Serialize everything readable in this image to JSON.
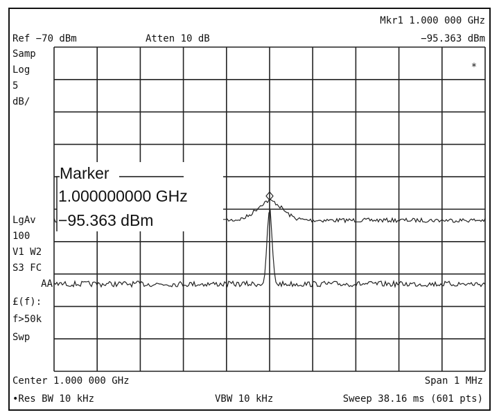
{
  "header": {
    "marker": "Mkr1  1.000 000 GHz",
    "ref": "Ref −70 dBm",
    "atten": "Atten 10 dB",
    "marker_value": "−95.363 dBm"
  },
  "left_labels": [
    "Samp",
    "Log",
    "5",
    "dB/",
    "LgAv",
    "100",
    "V1  W2",
    "S3  FC",
    "AA",
    "£(f):",
    "f>50k",
    "Swp"
  ],
  "trace_flag": "*",
  "annotation": {
    "title": "Marker",
    "frequency": "1.000000000 GHz",
    "amplitude": "−95.363 dBm"
  },
  "footer": {
    "center": "Center 1.000 000 GHz",
    "span": "Span 1 MHz",
    "res_bw": "•Res BW 10 kHz",
    "vbw": "VBW 10 kHz",
    "sweep": "Sweep 38.16 ms (601 pts)"
  }
}
